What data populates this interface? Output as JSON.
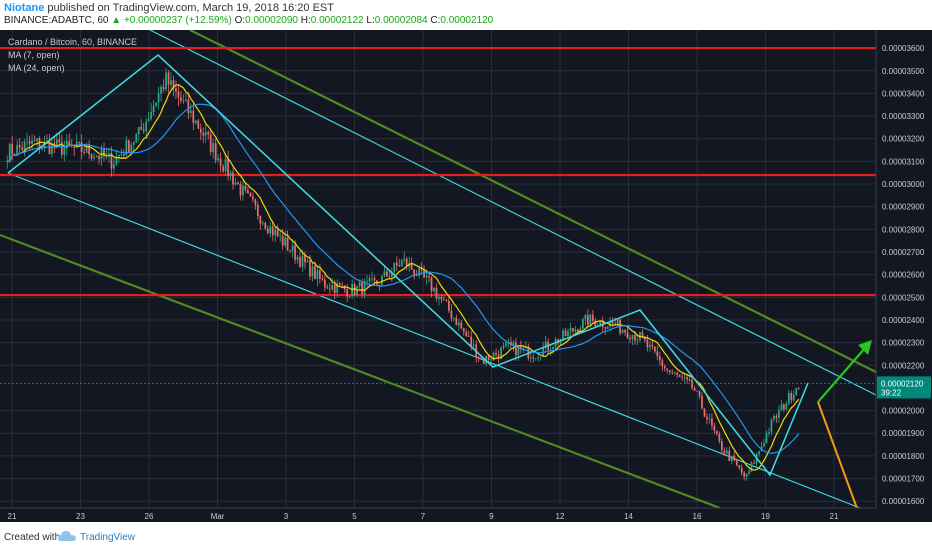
{
  "header": {
    "author": "Niotane",
    "publish_text": "published on TradingView.com, March 19, 2018 16:20 EST",
    "symbol_line": "BINANCE:ADABTC, 60",
    "change_text": "▲ +0.00000237 (+12.59%)",
    "last_price": "0.00002120",
    "ohlc": [
      {
        "label": "O:",
        "value": "0.00002090"
      },
      {
        "label": "H:",
        "value": "0.00002122"
      },
      {
        "label": "L:",
        "value": "0.00002084"
      },
      {
        "label": "C:",
        "value": "0.00002120"
      }
    ]
  },
  "footer": {
    "created_with": "Created with",
    "brand": "TradingView"
  },
  "colors": {
    "background": "#131722",
    "grid": "#2a2e39",
    "axis_text": "#c8cbd1",
    "ma7": "#f5d60a",
    "ma24": "#2196f3",
    "bull": "#2ea882",
    "bear": "#ea6c6c",
    "red_line": "#e31e1e",
    "cyan_line": "#3fd6e0",
    "olive_line": "#4e8a21",
    "orange_line": "#f39a16",
    "green_arrow": "#27c620",
    "price_tag": "#00897b"
  },
  "chart_data": {
    "type": "candlestick",
    "title": "Cardano / Bitcoin, 60, BINANCE",
    "legend": [
      "MA (7, open)",
      "MA (24, open)"
    ],
    "x_tick_labels": [
      "21",
      "23",
      "26",
      "Mar",
      "3",
      "5",
      "7",
      "9",
      "12",
      "14",
      "16",
      "19",
      "21"
    ],
    "y_tick_labels": [
      "0.00003600",
      "0.00003500",
      "0.00003400",
      "0.00003300",
      "0.00003200",
      "0.00003100",
      "0.00003000",
      "0.00002900",
      "0.00002800",
      "0.00002700",
      "0.00002600",
      "0.00002500",
      "0.00002400",
      "0.00002300",
      "0.00002200",
      "0.00002000",
      "0.00001900",
      "0.00001800",
      "0.00001700",
      "0.00001600"
    ],
    "ylim": [
      1.57e-05,
      3.68e-05
    ],
    "price_tag": {
      "value": "0.00002120",
      "countdown": "39:22"
    },
    "series_anchors": [
      {
        "x": "21",
        "p": 3.14e-05
      },
      {
        "x": "22",
        "p": 3.18e-05
      },
      {
        "x": "23",
        "p": 3.16e-05
      },
      {
        "x": "24",
        "p": 3.15e-05
      },
      {
        "x": "25",
        "p": 3.1e-05
      },
      {
        "x": "26",
        "p": 3.22e-05
      },
      {
        "x": "26.3",
        "p": 3.46e-05
      },
      {
        "x": "26.6",
        "p": 3.3e-05
      },
      {
        "x": "27",
        "p": 3.12e-05
      },
      {
        "x": "28",
        "p": 2.95e-05
      },
      {
        "x": "Mar 1",
        "p": 2.8e-05
      },
      {
        "x": "2",
        "p": 2.68e-05
      },
      {
        "x": "3",
        "p": 2.56e-05
      },
      {
        "x": "4",
        "p": 2.53e-05
      },
      {
        "x": "5",
        "p": 2.56e-05
      },
      {
        "x": "6",
        "p": 2.66e-05
      },
      {
        "x": "7",
        "p": 2.56e-05
      },
      {
        "x": "8",
        "p": 2.4e-05
      },
      {
        "x": "9",
        "p": 2.22e-05
      },
      {
        "x": "10",
        "p": 2.28e-05
      },
      {
        "x": "11",
        "p": 2.25e-05
      },
      {
        "x": "12",
        "p": 2.32e-05
      },
      {
        "x": "13",
        "p": 2.4e-05
      },
      {
        "x": "14",
        "p": 2.38e-05
      },
      {
        "x": "15",
        "p": 2.32e-05
      },
      {
        "x": "16",
        "p": 2.18e-05
      },
      {
        "x": "17",
        "p": 2.1e-05
      },
      {
        "x": "18",
        "p": 1.85e-05
      },
      {
        "x": "18.7",
        "p": 1.7e-05
      },
      {
        "x": "19.2",
        "p": 1.95e-05
      },
      {
        "x": "19.6",
        "p": 2.12e-05
      }
    ],
    "horizontal_levels": [
      3.6e-05,
      3.04e-05,
      2.51e-05
    ],
    "annotations": {
      "cyan_channel": "descending channel",
      "olive_channel": "wider descending channel",
      "arrows": [
        "green up arrow",
        "orange projection line"
      ]
    }
  }
}
